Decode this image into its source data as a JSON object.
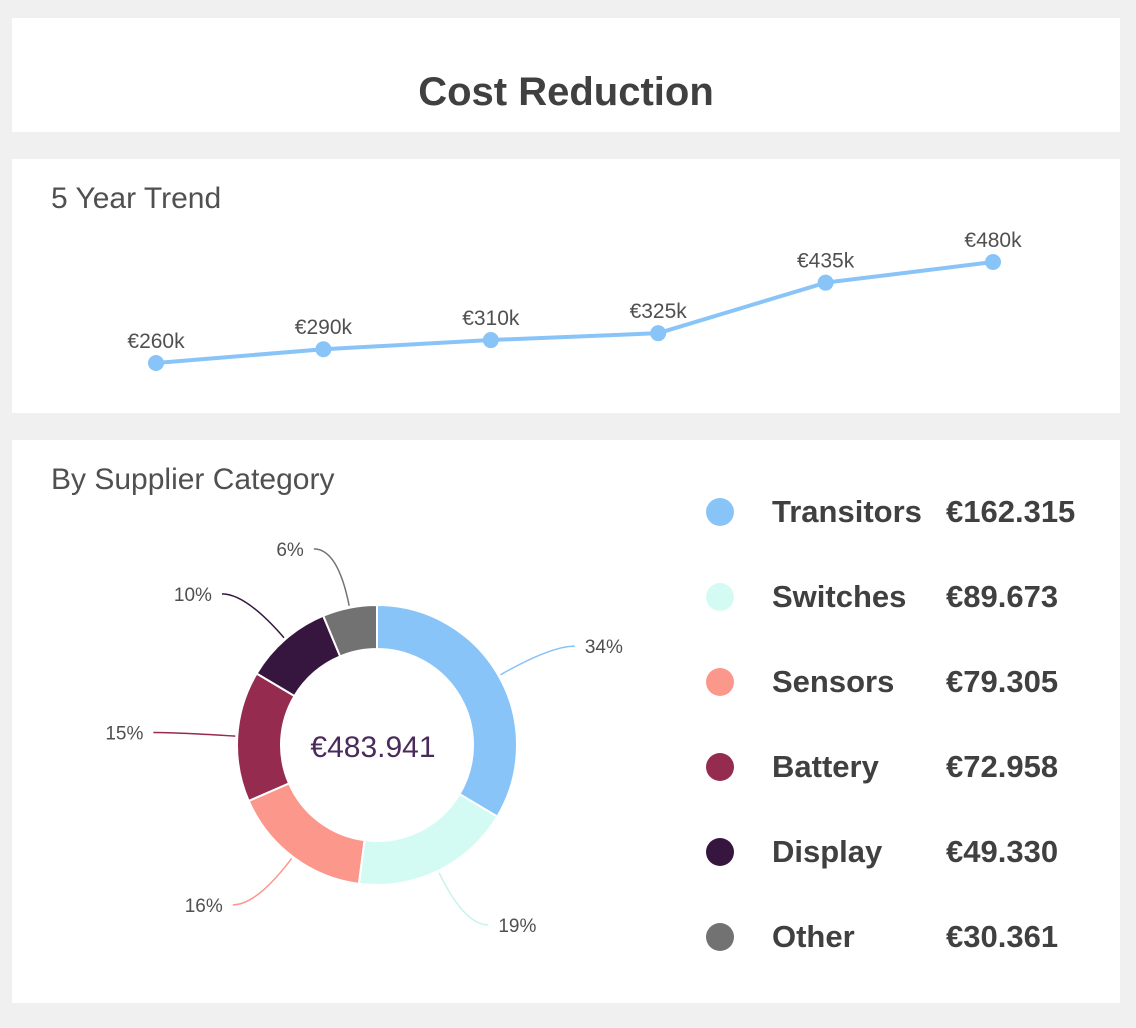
{
  "header": {
    "title": "Cost Reduction"
  },
  "trend": {
    "title": "5 Year Trend",
    "color": "#88c4f8"
  },
  "supplier": {
    "title": "By Supplier Category",
    "total_label": "€483.941",
    "total_color": "#4a2a5c"
  },
  "chart_data": [
    {
      "type": "line",
      "title": "5 Year Trend",
      "x": [
        1,
        2,
        3,
        4,
        5,
        6
      ],
      "values": [
        260,
        290,
        310,
        325,
        435,
        480
      ],
      "data_labels": [
        "€260k",
        "€290k",
        "€310k",
        "€325k",
        "€435k",
        "€480k"
      ],
      "ylim": [
        0,
        500
      ],
      "grid": false,
      "color": "#88c4f8"
    },
    {
      "type": "pie",
      "title": "By Supplier Category",
      "donut": true,
      "center_label": "€483.941",
      "legend_position": "right",
      "slices": [
        {
          "name": "Transitors",
          "value_label": "€162.315",
          "value": 162315,
          "percent_label": "34%",
          "color": "#88c4f8"
        },
        {
          "name": "Switches",
          "value_label": "€89.673",
          "value": 89673,
          "percent_label": "19%",
          "color": "#d4fbf3"
        },
        {
          "name": "Sensors",
          "value_label": "€79.305",
          "value": 79305,
          "percent_label": "16%",
          "color": "#fc978c"
        },
        {
          "name": "Battery",
          "value_label": "€72.958",
          "value": 72958,
          "percent_label": "15%",
          "color": "#952b4f"
        },
        {
          "name": "Display",
          "value_label": "€49.330",
          "value": 49330,
          "percent_label": "10%",
          "color": "#36163f"
        },
        {
          "name": "Other",
          "value_label": "€30.361",
          "value": 30361,
          "percent_label": "6%",
          "color": "#727272"
        }
      ]
    }
  ]
}
